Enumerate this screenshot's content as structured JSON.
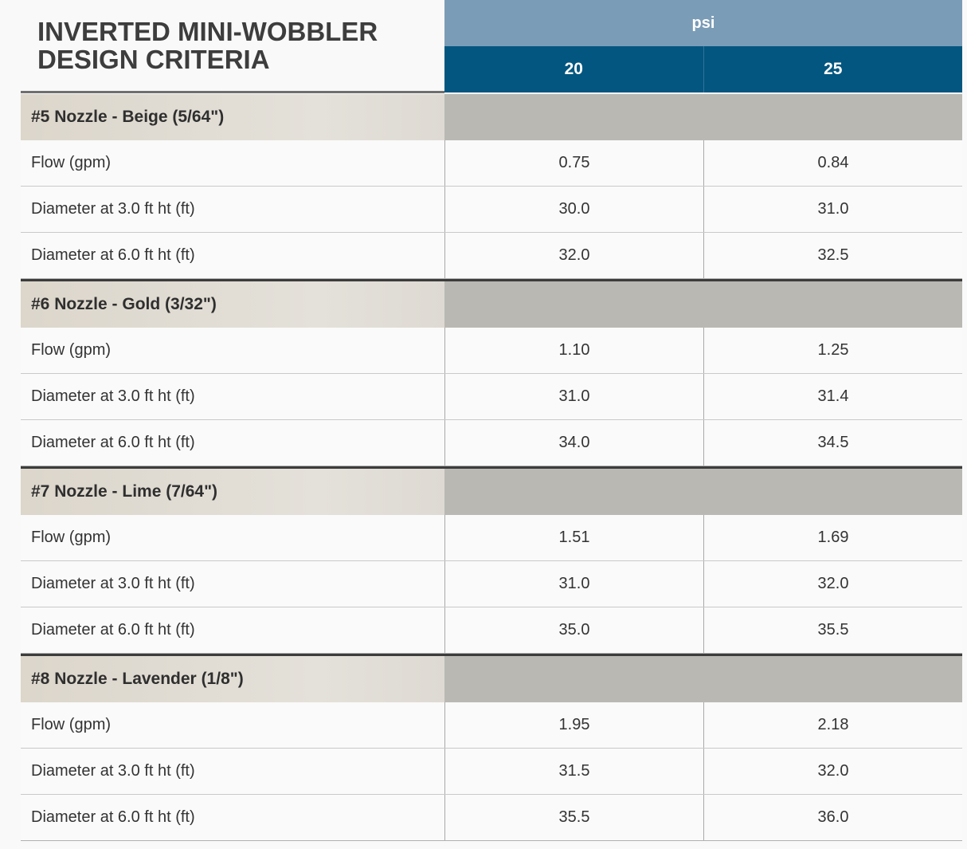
{
  "title": {
    "line1": "INVERTED MINI-WOBBLER",
    "line2": "DESIGN CRITERIA"
  },
  "unit_label": "psi",
  "columns": [
    "20",
    "25"
  ],
  "groups": [
    {
      "label": "#5 Nozzle - Beige (5/64\")",
      "rows": [
        {
          "label": "Flow (gpm)",
          "values": [
            "0.75",
            "0.84"
          ]
        },
        {
          "label": "Diameter at 3.0 ft ht (ft)",
          "values": [
            "30.0",
            "31.0"
          ]
        },
        {
          "label": "Diameter at 6.0 ft ht (ft)",
          "values": [
            "32.0",
            "32.5"
          ]
        }
      ]
    },
    {
      "label": "#6 Nozzle - Gold (3/32\")",
      "rows": [
        {
          "label": "Flow (gpm)",
          "values": [
            "1.10",
            "1.25"
          ]
        },
        {
          "label": "Diameter at 3.0 ft ht (ft)",
          "values": [
            "31.0",
            "31.4"
          ]
        },
        {
          "label": "Diameter at 6.0 ft ht (ft)",
          "values": [
            "34.0",
            "34.5"
          ]
        }
      ]
    },
    {
      "label": "#7 Nozzle - Lime (7/64\")",
      "rows": [
        {
          "label": "Flow (gpm)",
          "values": [
            "1.51",
            "1.69"
          ]
        },
        {
          "label": "Diameter at 3.0 ft ht (ft)",
          "values": [
            "31.0",
            "32.0"
          ]
        },
        {
          "label": "Diameter at 6.0 ft ht (ft)",
          "values": [
            "35.0",
            "35.5"
          ]
        }
      ]
    },
    {
      "label": "#8 Nozzle - Lavender (1/8\")",
      "rows": [
        {
          "label": "Flow (gpm)",
          "values": [
            "1.95",
            "2.18"
          ]
        },
        {
          "label": "Diameter at 3.0 ft ht (ft)",
          "values": [
            "31.5",
            "32.0"
          ]
        },
        {
          "label": "Diameter at 6.0 ft ht (ft)",
          "values": [
            "35.5",
            "36.0"
          ]
        }
      ]
    }
  ],
  "colors": {
    "unit_band": "#7b9cb6",
    "column_header": "#03567f",
    "group_label_bg": "#dcd6cb",
    "group_fill": "#b9b8b3",
    "title_text": "#3d3d3d"
  }
}
